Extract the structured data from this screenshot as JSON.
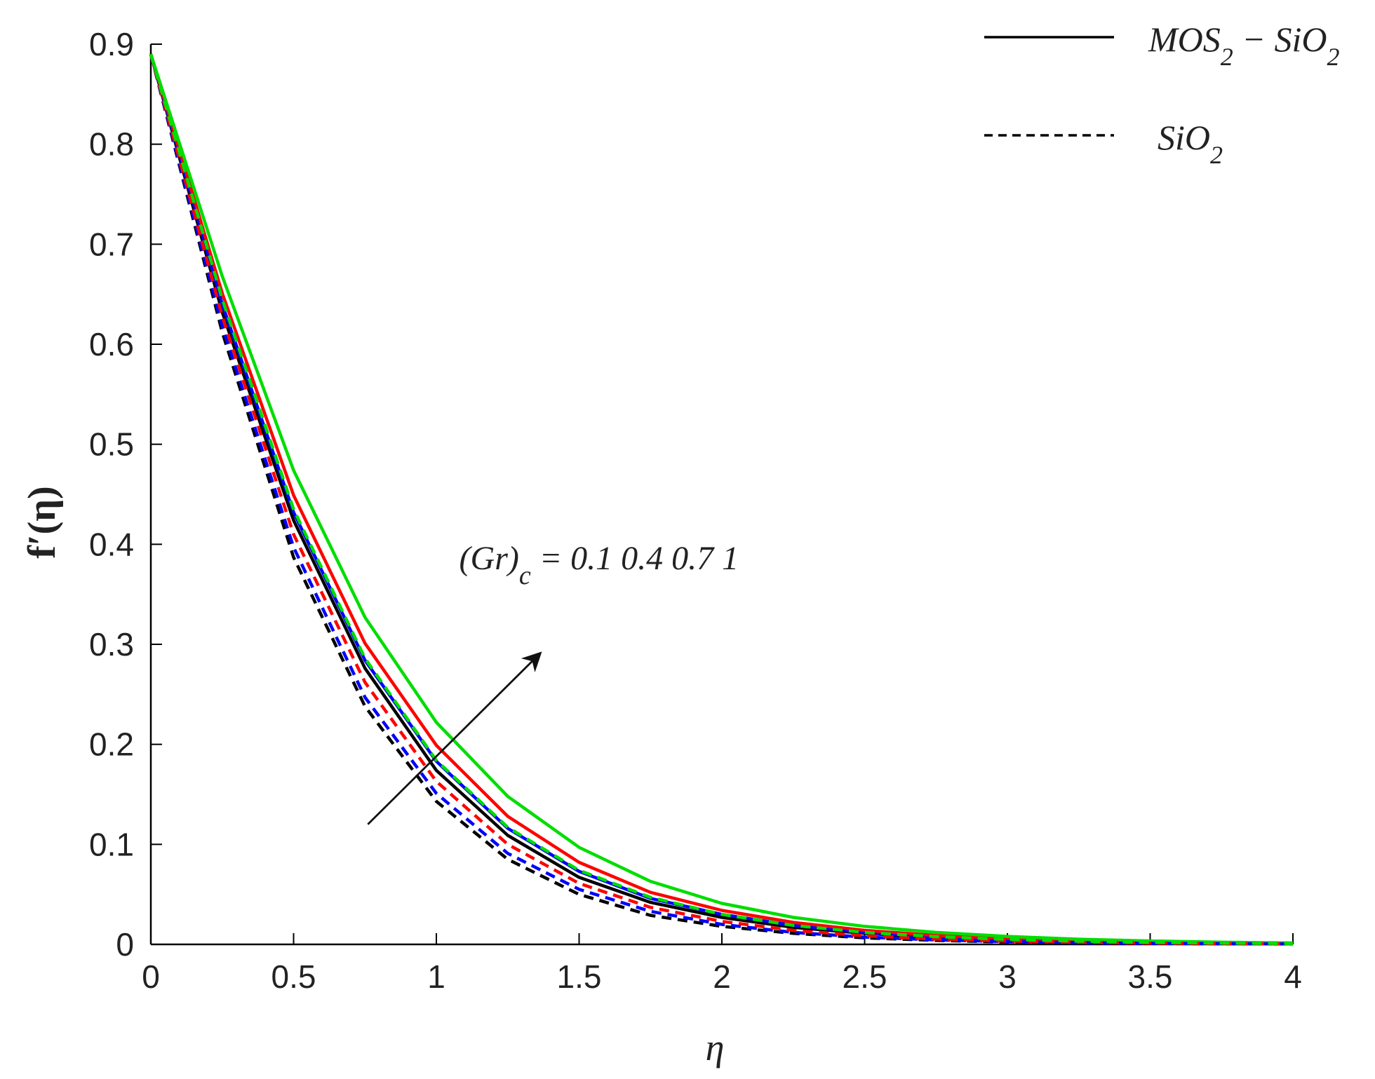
{
  "chart_data": {
    "type": "line",
    "title": "",
    "xlabel": "η",
    "ylabel": "f′(η)",
    "xlim": [
      0,
      4
    ],
    "ylim": [
      0,
      0.9
    ],
    "xticks": [
      0,
      0.5,
      1,
      1.5,
      2,
      2.5,
      3,
      3.5,
      4
    ],
    "xtick_labels": [
      "0",
      "0.5",
      "1",
      "1.5",
      "2",
      "2.5",
      "3",
      "3.5",
      "4"
    ],
    "yticks": [
      0,
      0.1,
      0.2,
      0.3,
      0.4,
      0.5,
      0.6,
      0.7,
      0.8,
      0.9
    ],
    "ytick_labels": [
      "0",
      "0.1",
      "0.2",
      "0.3",
      "0.4",
      "0.5",
      "0.6",
      "0.7",
      "0.8",
      "0.9"
    ],
    "grid": false,
    "legend_position": "top-right",
    "legend": [
      {
        "label_main": "MOS",
        "label_sub1": "2",
        "label_mid": " − SiO",
        "label_sub2": "2",
        "style": "solid",
        "color": "#000000"
      },
      {
        "label_main": "SiO",
        "label_sub1": "2",
        "label_mid": "",
        "label_sub2": "",
        "style": "dashed",
        "color": "#000000"
      }
    ],
    "annotation": {
      "text_main": "(Gr)",
      "text_sub": "c",
      "text_rest": " = 0.1 0.4 0.7 1",
      "arrow": "increasing Gr"
    },
    "x": [
      0,
      0.25,
      0.5,
      0.75,
      1,
      1.25,
      1.5,
      1.75,
      2,
      2.25,
      2.5,
      2.75,
      3,
      3.25,
      3.5,
      3.75,
      4
    ],
    "series": [
      {
        "style": "solid",
        "color": "#000000",
        "values": [
          0.89,
          0.632,
          0.424,
          0.276,
          0.174,
          0.109,
          0.067,
          0.042,
          0.027,
          0.017,
          0.011,
          0.007,
          0.0045,
          0.003,
          0.002,
          0.0012,
          0.0008
        ]
      },
      {
        "style": "solid",
        "color": "#0000ff",
        "values": [
          0.89,
          0.64,
          0.432,
          0.284,
          0.183,
          0.116,
          0.073,
          0.046,
          0.03,
          0.019,
          0.012,
          0.008,
          0.005,
          0.0033,
          0.0022,
          0.0014,
          0.0009
        ]
      },
      {
        "style": "solid",
        "color": "#ff0000",
        "values": [
          0.89,
          0.651,
          0.449,
          0.301,
          0.199,
          0.128,
          0.082,
          0.052,
          0.034,
          0.022,
          0.014,
          0.009,
          0.006,
          0.004,
          0.0026,
          0.0017,
          0.0011
        ]
      },
      {
        "style": "solid",
        "color": "#00dd00",
        "values": [
          0.89,
          0.668,
          0.474,
          0.327,
          0.222,
          0.148,
          0.097,
          0.063,
          0.041,
          0.027,
          0.018,
          0.012,
          0.008,
          0.0052,
          0.0034,
          0.0022,
          0.0015
        ]
      },
      {
        "style": "dashed",
        "color": "#000000",
        "values": [
          0.89,
          0.612,
          0.387,
          0.238,
          0.143,
          0.085,
          0.05,
          0.029,
          0.018,
          0.011,
          0.0065,
          0.004,
          0.0024,
          0.0015,
          0.0009,
          0.0006,
          0.0004
        ]
      },
      {
        "style": "dashed",
        "color": "#0000ff",
        "values": [
          0.89,
          0.618,
          0.397,
          0.247,
          0.151,
          0.091,
          0.055,
          0.033,
          0.02,
          0.012,
          0.0073,
          0.0045,
          0.0027,
          0.0017,
          0.001,
          0.0007,
          0.0005
        ]
      },
      {
        "style": "dashed",
        "color": "#ff0000",
        "values": [
          0.89,
          0.628,
          0.41,
          0.262,
          0.163,
          0.1,
          0.061,
          0.037,
          0.023,
          0.014,
          0.0086,
          0.0053,
          0.0033,
          0.002,
          0.0013,
          0.0008,
          0.0005
        ]
      },
      {
        "style": "dashed",
        "color": "#00dd00",
        "values": [
          0.89,
          0.645,
          0.435,
          0.286,
          0.184,
          0.117,
          0.074,
          0.047,
          0.03,
          0.019,
          0.012,
          0.0078,
          0.005,
          0.0032,
          0.002,
          0.0013,
          0.0009
        ]
      }
    ]
  }
}
